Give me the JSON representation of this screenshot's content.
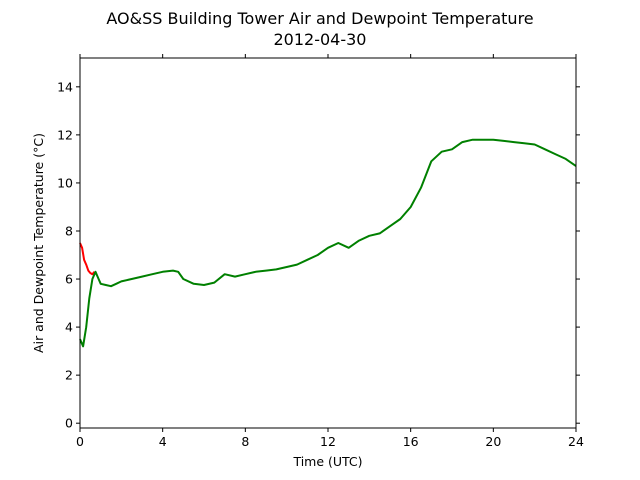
{
  "chart_data": {
    "type": "line",
    "title": "AO&SS Building Tower Air and Dewpoint Temperature",
    "subtitle": "2012-04-30",
    "xlabel": "Time (UTC)",
    "ylabel": "Air and Dewpoint Temperature (°C)",
    "xlim": [
      0,
      24
    ],
    "ylim": [
      -0.2,
      15.2
    ],
    "xticks": [
      0,
      4,
      8,
      12,
      16,
      20,
      24
    ],
    "yticks": [
      0,
      2,
      4,
      6,
      8,
      10,
      12,
      14
    ],
    "grid": false,
    "legend": "none",
    "series": [
      {
        "color": "#ff0000",
        "x": [
          0.0,
          0.1,
          0.2,
          0.3,
          0.4,
          0.5,
          0.6,
          0.7
        ],
        "y": [
          7.5,
          7.3,
          6.8,
          6.6,
          6.35,
          6.25,
          6.2,
          6.3
        ]
      },
      {
        "color": "#008000",
        "x": [
          0.0,
          0.15,
          0.3,
          0.45,
          0.6,
          0.75,
          0.9,
          1.0,
          1.25,
          1.5,
          1.75,
          2.0,
          2.5,
          3.0,
          3.5,
          4.0,
          4.5,
          4.75,
          5.0,
          5.5,
          6.0,
          6.5,
          7.0,
          7.5,
          8.0,
          8.5,
          9.0,
          9.5,
          10.0,
          10.5,
          11.0,
          11.5,
          12.0,
          12.5,
          13.0,
          13.5,
          14.0,
          14.5,
          15.0,
          15.5,
          16.0,
          16.5,
          17.0,
          17.5,
          18.0,
          18.5,
          19.0,
          19.5,
          20.0,
          20.5,
          21.0,
          21.5,
          22.0,
          22.5,
          23.0,
          23.5,
          24.0
        ],
        "y": [
          3.5,
          3.2,
          4.0,
          5.2,
          6.0,
          6.3,
          6.0,
          5.8,
          5.75,
          5.7,
          5.8,
          5.9,
          6.0,
          6.1,
          6.2,
          6.3,
          6.35,
          6.3,
          6.0,
          5.8,
          5.75,
          5.85,
          6.2,
          6.1,
          6.2,
          6.3,
          6.35,
          6.4,
          6.5,
          6.6,
          6.8,
          7.0,
          7.3,
          7.5,
          7.3,
          7.6,
          7.8,
          7.9,
          8.2,
          8.5,
          9.0,
          9.8,
          10.9,
          11.3,
          11.4,
          11.7,
          11.8,
          11.8,
          11.8,
          11.75,
          11.7,
          11.65,
          11.6,
          11.4,
          11.2,
          11.0,
          10.7
        ]
      }
    ]
  }
}
